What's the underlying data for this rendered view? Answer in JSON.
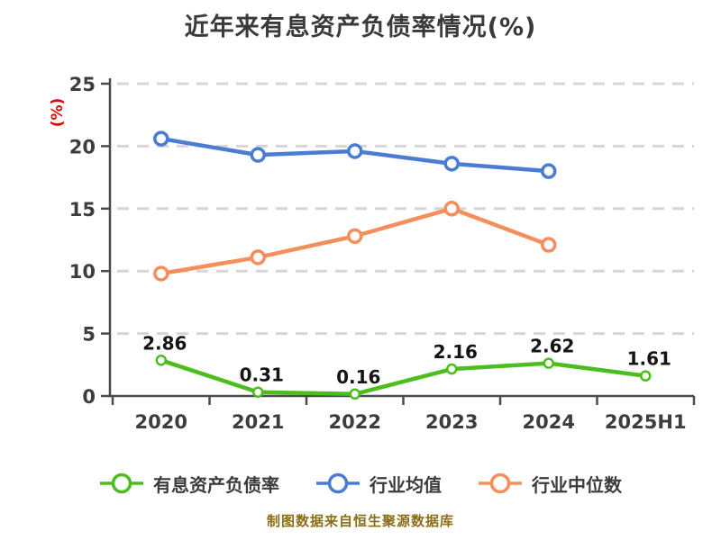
{
  "footer": {
    "text": "制图数据来自恒生聚源数据库"
  },
  "colors": {
    "background": "#ffffff",
    "axis": "#4b4b4b",
    "grid": "#d6d6d6",
    "tick_label": "#3d3d3d",
    "title": "#3a3a3a",
    "data_label": "#141414",
    "ylabel": "#e60000",
    "footer": "#8a6d16",
    "legend_label": "#3c3c3c"
  },
  "chart_data": {
    "type": "line",
    "title": "近年来有息资产负债率情况(%)",
    "ylabel": "(%)",
    "xlabel": "",
    "categories": [
      "2020",
      "2021",
      "2022",
      "2023",
      "2024",
      "2025H1"
    ],
    "series": [
      {
        "name": "有息资产负债率",
        "color": "#4bbd1d",
        "values": [
          2.86,
          0.31,
          0.16,
          2.16,
          2.62,
          1.61
        ],
        "data_labels_shown": true
      },
      {
        "name": "行业均值",
        "color": "#4a7dd2",
        "values": [
          20.6,
          19.3,
          19.6,
          18.6,
          18.0,
          null
        ],
        "data_labels_shown": false
      },
      {
        "name": "行业中位数",
        "color": "#f68e5c",
        "values": [
          9.8,
          11.1,
          12.8,
          15.0,
          12.1,
          null
        ],
        "data_labels_shown": false
      }
    ],
    "ylim": [
      0,
      25
    ],
    "yticks": [
      0,
      5,
      10,
      15,
      20,
      25
    ],
    "grid": true,
    "grid_style": "dashed",
    "legend_position": "bottom"
  }
}
